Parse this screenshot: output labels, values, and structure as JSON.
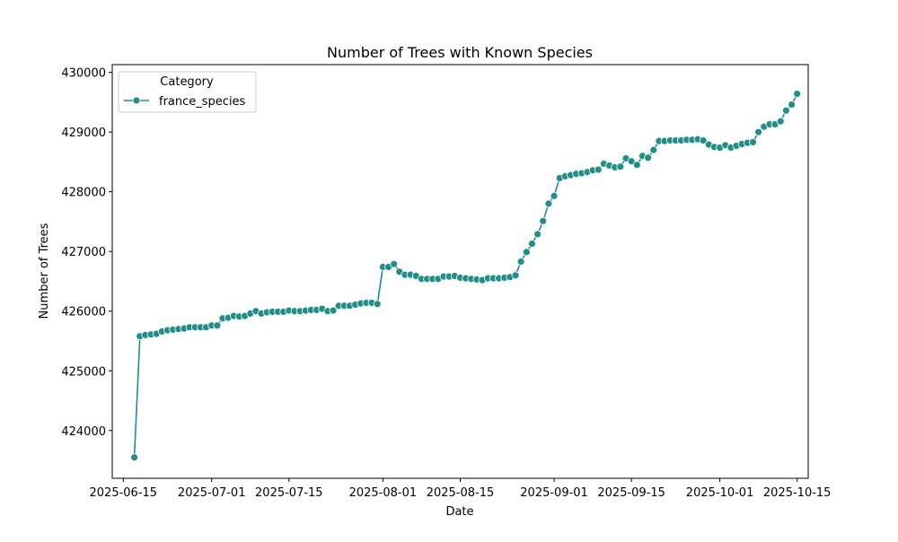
{
  "chart_data": {
    "type": "line",
    "title": "Number of Trees with Known Species",
    "xlabel": "Date",
    "ylabel": "Number of Trees",
    "x_start_date": "2025-06-17",
    "x_step": "1 day",
    "xlim": [
      "2025-06-13",
      "2025-10-17"
    ],
    "ylim": [
      423200,
      430130
    ],
    "xticks": [
      "2025-06-15",
      "2025-07-01",
      "2025-07-15",
      "2025-08-01",
      "2025-08-15",
      "2025-09-01",
      "2025-09-15",
      "2025-10-01",
      "2025-10-15"
    ],
    "yticks": [
      424000,
      425000,
      426000,
      427000,
      428000,
      429000,
      430000
    ],
    "grid": false,
    "legend": {
      "title": "Category",
      "placement": "top-left"
    },
    "series": [
      {
        "name": "france_species",
        "color": "#1f8f89",
        "values": [
          423550,
          425580,
          425600,
          425610,
          425620,
          425660,
          425680,
          425690,
          425700,
          425710,
          425730,
          425730,
          425730,
          425730,
          425760,
          425760,
          425880,
          425890,
          425920,
          425910,
          425920,
          425960,
          426000,
          425960,
          425980,
          425990,
          425990,
          425990,
          426010,
          426000,
          426000,
          426010,
          426020,
          426020,
          426040,
          426000,
          426010,
          426090,
          426090,
          426090,
          426110,
          426130,
          426140,
          426140,
          426120,
          426740,
          426740,
          426790,
          426660,
          426610,
          426610,
          426590,
          426540,
          426540,
          426540,
          426540,
          426580,
          426580,
          426590,
          426560,
          426550,
          426540,
          426530,
          426520,
          426550,
          426550,
          426550,
          426560,
          426570,
          426600,
          426830,
          426990,
          427130,
          427290,
          427510,
          427800,
          427930,
          428230,
          428260,
          428280,
          428300,
          428310,
          428330,
          428360,
          428370,
          428470,
          428440,
          428410,
          428420,
          428560,
          428510,
          428450,
          428600,
          428570,
          428700,
          428850,
          428850,
          428860,
          428860,
          428860,
          428870,
          428870,
          428880,
          428860,
          428790,
          428750,
          428740,
          428780,
          428740,
          428770,
          428800,
          428820,
          428830,
          429000,
          429090,
          429130,
          429130,
          429180,
          429360,
          429460,
          429640
        ]
      }
    ]
  }
}
